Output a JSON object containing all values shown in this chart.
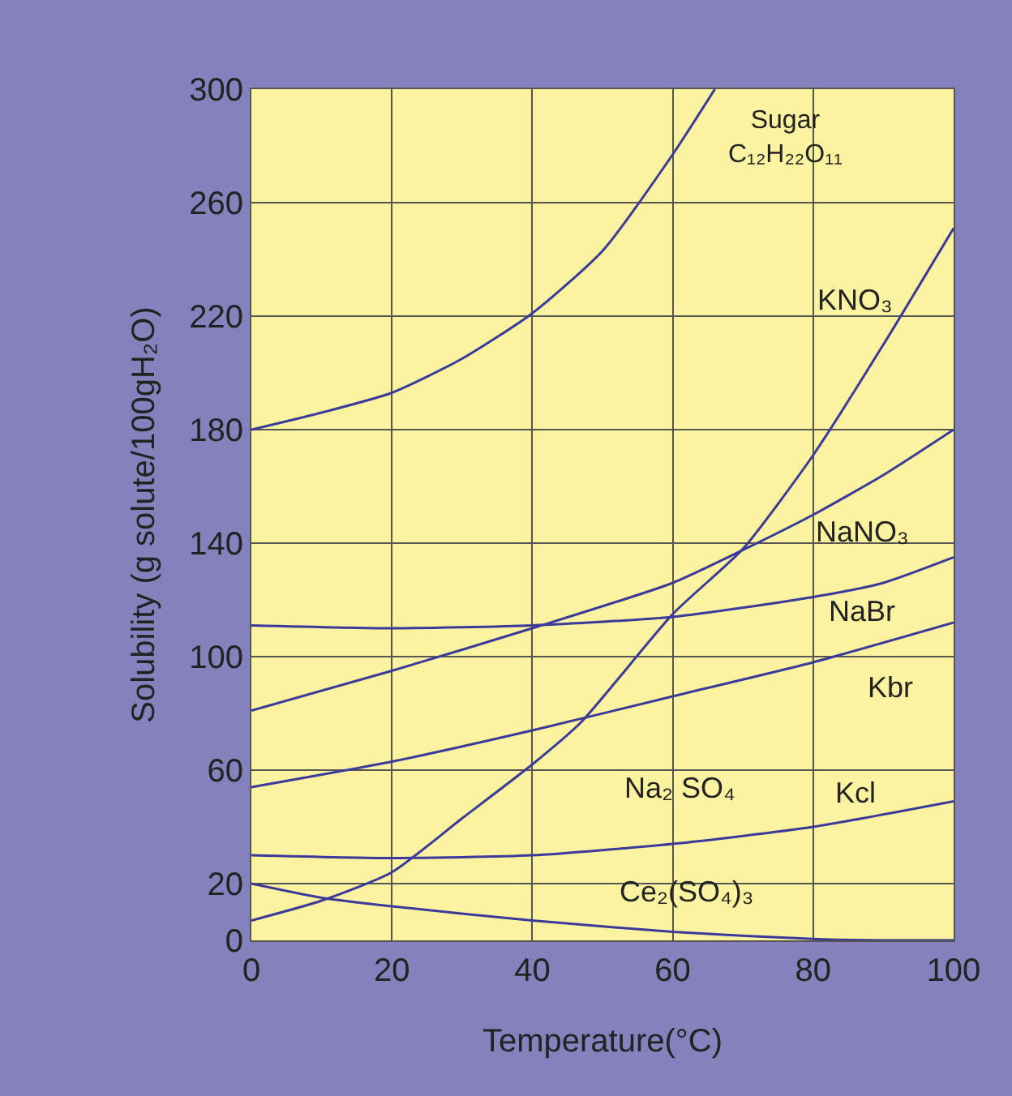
{
  "chart_data": {
    "type": "line",
    "xlabel": "Temperature(°C)",
    "ylabel": "Solubility (g solute/100gH₂O)",
    "xlim": [
      0,
      100
    ],
    "xticks": [
      0,
      20,
      40,
      60,
      80,
      100
    ],
    "ylim": [
      0,
      300
    ],
    "yticks": [
      0,
      20,
      60,
      100,
      140,
      180,
      220,
      260,
      300
    ],
    "grid": true,
    "legend": false,
    "marker": "none",
    "line_style": "solid",
    "series": [
      {
        "name": "Sugar\nC₁₂H₂₂O₁₁",
        "color": "#3b3a9a",
        "x": [
          0,
          10,
          20,
          30,
          40,
          50,
          60,
          66
        ],
        "values": [
          180,
          186,
          193,
          205,
          221,
          243,
          277,
          300
        ]
      },
      {
        "name": "KNO₃",
        "color": "#3b3a9a",
        "x": [
          0,
          10,
          20,
          30,
          40,
          47,
          60,
          70,
          80,
          90,
          100
        ],
        "values": [
          7,
          14,
          24,
          43,
          62,
          77,
          115,
          138,
          171,
          210,
          251
        ]
      },
      {
        "name": "NaNO₃",
        "color": "#3b3a9a",
        "x": [
          0,
          20,
          40,
          60,
          72,
          80,
          90,
          100
        ],
        "values": [
          81,
          95,
          110,
          126,
          140,
          150,
          164,
          180
        ]
      },
      {
        "name": "NaBr",
        "color": "#3b3a9a",
        "x": [
          0,
          20,
          40,
          60,
          80,
          90,
          100
        ],
        "values": [
          111,
          110,
          111,
          114,
          121,
          126,
          135
        ]
      },
      {
        "name": "Kbr",
        "color": "#3b3a9a",
        "x": [
          0,
          20,
          40,
          60,
          80,
          100
        ],
        "values": [
          54,
          63,
          74,
          86,
          98,
          112
        ]
      },
      {
        "name": "Kcl",
        "color": "#3b3a9a",
        "x": [
          0,
          20,
          40,
          60,
          80,
          100
        ],
        "values": [
          30,
          29,
          30,
          34,
          40,
          49
        ]
      },
      {
        "name": "Ce₂(SO₄)₃",
        "color": "#3b3a9a",
        "x": [
          0,
          10,
          20,
          40,
          60,
          80,
          90,
          100
        ],
        "values": [
          20,
          15,
          12,
          7,
          3,
          0.5,
          0,
          0
        ]
      }
    ],
    "annotations": [
      "Na₂ SO₄"
    ]
  }
}
